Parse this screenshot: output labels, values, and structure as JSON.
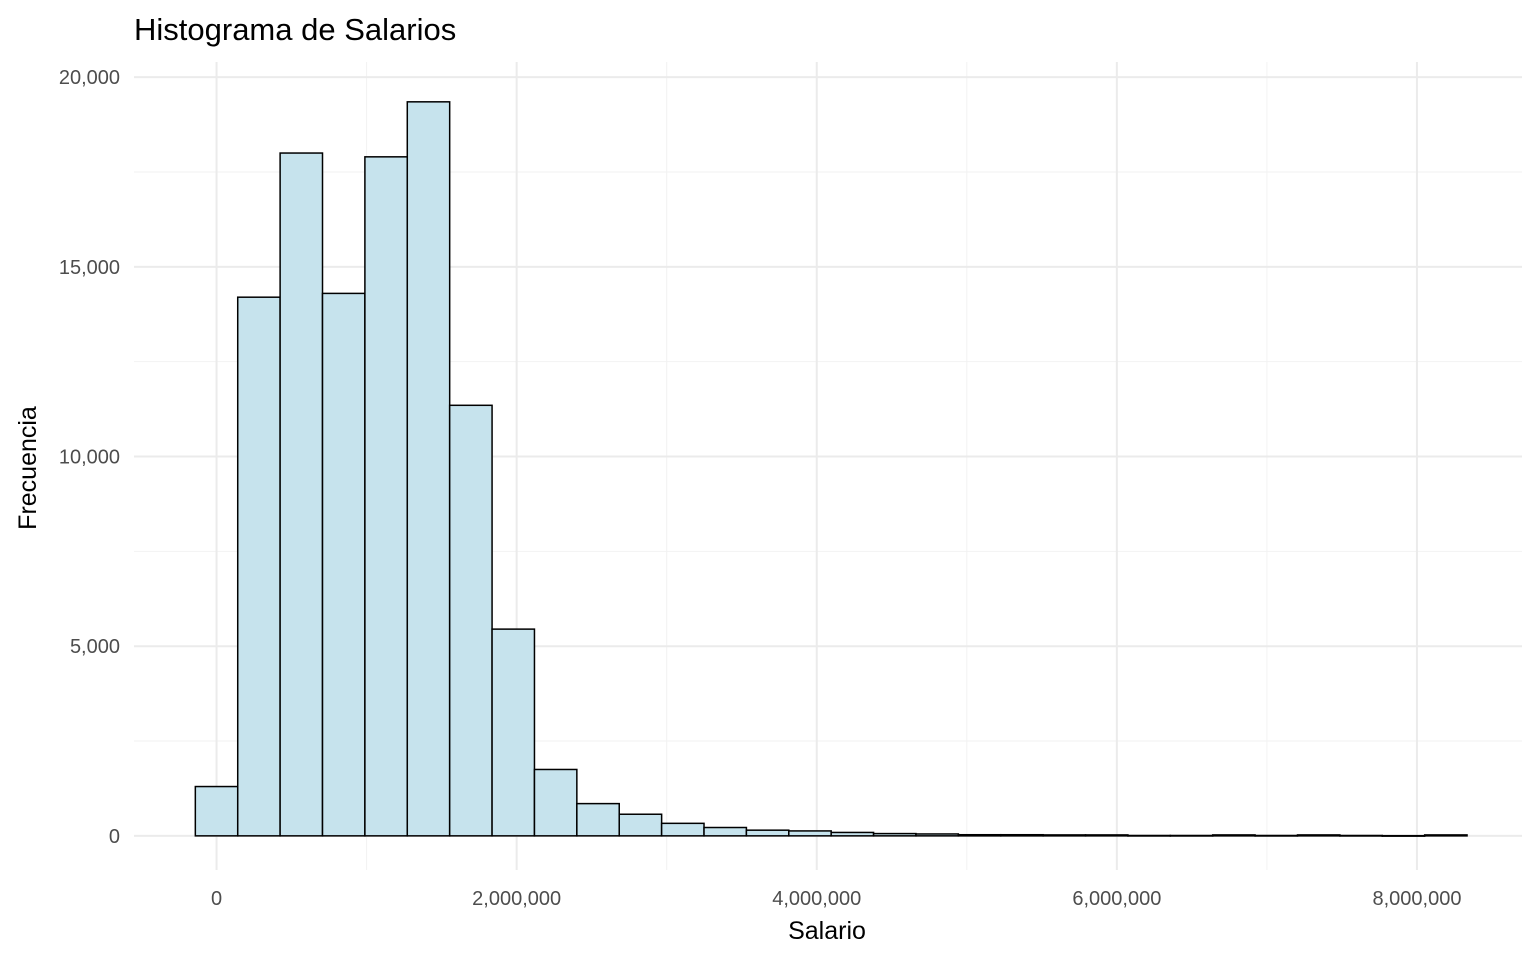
{
  "chart_data": {
    "type": "bar",
    "title": "Histograma de Salarios",
    "xlabel": "Salario",
    "ylabel": "Frecuencia",
    "x_ticks": [
      0,
      2000000,
      4000000,
      6000000,
      8000000
    ],
    "x_tick_labels": [
      "0",
      "2,000,000",
      "4,000,000",
      "6,000,000",
      "8,000,000"
    ],
    "y_ticks": [
      0,
      5000,
      10000,
      15000,
      20000
    ],
    "y_tick_labels": [
      "0",
      "5,000",
      "10,000",
      "15,000",
      "20,000"
    ],
    "xlim": [
      -550000,
      8700000
    ],
    "ylim": [
      -900,
      20400
    ],
    "bin_width": 282500,
    "bins": [
      {
        "start": -141250,
        "end": 141250,
        "count": 1300
      },
      {
        "start": 141250,
        "end": 423750,
        "count": 14200
      },
      {
        "start": 423750,
        "end": 706250,
        "count": 18000
      },
      {
        "start": 706250,
        "end": 988750,
        "count": 14300
      },
      {
        "start": 988750,
        "end": 1271250,
        "count": 17900
      },
      {
        "start": 1271250,
        "end": 1553750,
        "count": 19350
      },
      {
        "start": 1553750,
        "end": 1836250,
        "count": 11350
      },
      {
        "start": 1836250,
        "end": 2118750,
        "count": 5450
      },
      {
        "start": 2118750,
        "end": 2401250,
        "count": 1750
      },
      {
        "start": 2401250,
        "end": 2683750,
        "count": 850
      },
      {
        "start": 2683750,
        "end": 2966250,
        "count": 570
      },
      {
        "start": 2966250,
        "end": 3248750,
        "count": 330
      },
      {
        "start": 3248750,
        "end": 3531250,
        "count": 220
      },
      {
        "start": 3531250,
        "end": 3813750,
        "count": 150
      },
      {
        "start": 3813750,
        "end": 4096250,
        "count": 130
      },
      {
        "start": 4096250,
        "end": 4378750,
        "count": 90
      },
      {
        "start": 4378750,
        "end": 4661250,
        "count": 60
      },
      {
        "start": 4661250,
        "end": 4943750,
        "count": 50
      },
      {
        "start": 4943750,
        "end": 5226250,
        "count": 30
      },
      {
        "start": 5226250,
        "end": 5508750,
        "count": 30
      },
      {
        "start": 5508750,
        "end": 5791250,
        "count": 25
      },
      {
        "start": 5791250,
        "end": 6073750,
        "count": 25
      },
      {
        "start": 6073750,
        "end": 6356250,
        "count": 10
      },
      {
        "start": 6356250,
        "end": 6638750,
        "count": 10
      },
      {
        "start": 6638750,
        "end": 6921250,
        "count": 25
      },
      {
        "start": 6921250,
        "end": 7203750,
        "count": 10
      },
      {
        "start": 7203750,
        "end": 7486250,
        "count": 25
      },
      {
        "start": 7486250,
        "end": 7768750,
        "count": 10
      },
      {
        "start": 7768750,
        "end": 8051250,
        "count": 5
      },
      {
        "start": 8051250,
        "end": 8333750,
        "count": 25
      }
    ],
    "grid": true,
    "colors": {
      "bar_fill": "#c6e3ed",
      "bar_stroke": "#000000",
      "grid": "#ebebeb",
      "background": "#ffffff"
    }
  }
}
